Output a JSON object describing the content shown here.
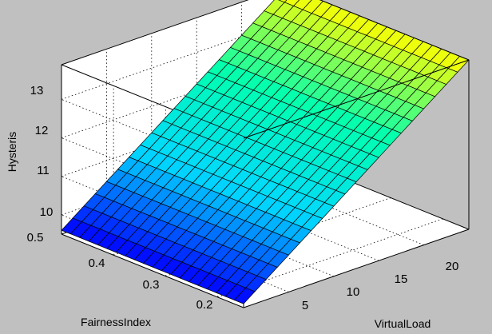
{
  "chart_data": {
    "type": "surface",
    "xlabel": "VirtualLoad",
    "ylabel": "FairnessIndex",
    "zlabel": "Hysteris",
    "x_ticks": [
      "5",
      "10",
      "15",
      "20"
    ],
    "y_ticks": [
      "0.2",
      "0.3",
      "0.4",
      "0.5"
    ],
    "z_ticks": [
      "10",
      "11",
      "12",
      "13"
    ],
    "xlim": [
      0,
      25
    ],
    "ylim": [
      0.15,
      0.5
    ],
    "zlim": [
      9.5,
      13.9
    ],
    "grid": true,
    "colormap": [
      "#0000ff",
      "#00d8ff",
      "#00ffb0",
      "#ffff00"
    ],
    "surface": {
      "description_fn": "plane",
      "x_range": [
        0,
        25
      ],
      "y_range": [
        0.15,
        0.5
      ],
      "z_corners": {
        "x0_ylow": 9.6,
        "x0_yhigh": 9.6,
        "xmax_ylow": 13.9,
        "xmax_yhigh": 13.9
      },
      "grid_lines": 20
    }
  }
}
